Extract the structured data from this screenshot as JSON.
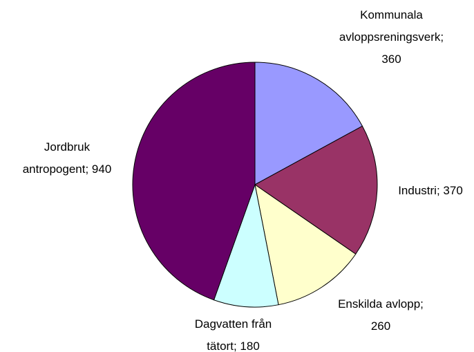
{
  "chart_data": {
    "type": "pie",
    "categories": [
      "Kommunala avloppsreningsverk;",
      "Industri;",
      "Enskilda avlopp;",
      "Dagvatten från tätort;",
      "Jordbruk antropogent;"
    ],
    "values": [
      360,
      370,
      260,
      180,
      940
    ],
    "colors": [
      "#9999ff",
      "#993366",
      "#ffffcc",
      "#ccffff",
      "#660066"
    ],
    "start_angle": 90,
    "direction": "clockwise"
  }
}
